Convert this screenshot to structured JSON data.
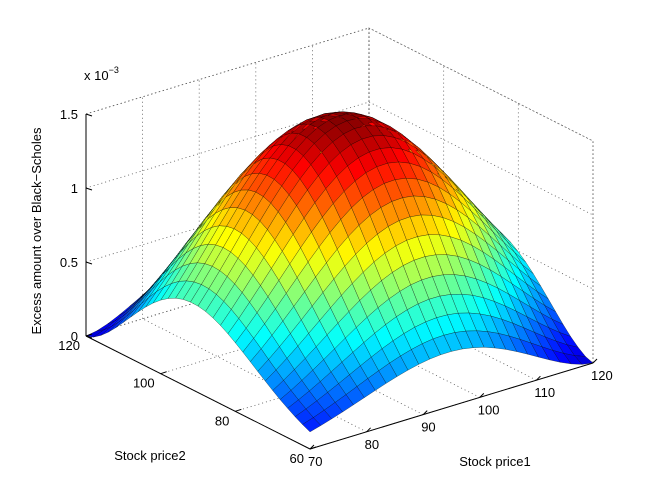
{
  "chart_data": {
    "type": "surface",
    "title": "",
    "xlabel": "Stock price1",
    "ylabel": "Stock price2",
    "zlabel": "Excess amount over Black−Scholes",
    "z_exponent_label": "x 10",
    "z_exponent_power": "−3",
    "xlim": [
      70,
      120
    ],
    "ylim": [
      60,
      120
    ],
    "zlim": [
      0,
      0.0015
    ],
    "x_ticks": [
      "70",
      "80",
      "90",
      "100",
      "110",
      "120"
    ],
    "y_ticks": [
      "60",
      "80",
      "100",
      "120"
    ],
    "z_ticks": [
      "0",
      "0.5",
      "1",
      "1.5"
    ],
    "z_tick_values": [
      0,
      0.0005,
      0.001,
      0.0015
    ],
    "grid": true,
    "colormap": "jet",
    "surface": {
      "peak_value": 0.00158,
      "ridge_points": [
        {
          "price1": 120,
          "price2": 60
        },
        {
          "price1": 70,
          "price2": 120
        }
      ],
      "ridge_width": 17,
      "x_samples": 26,
      "y_samples": 30
    }
  }
}
